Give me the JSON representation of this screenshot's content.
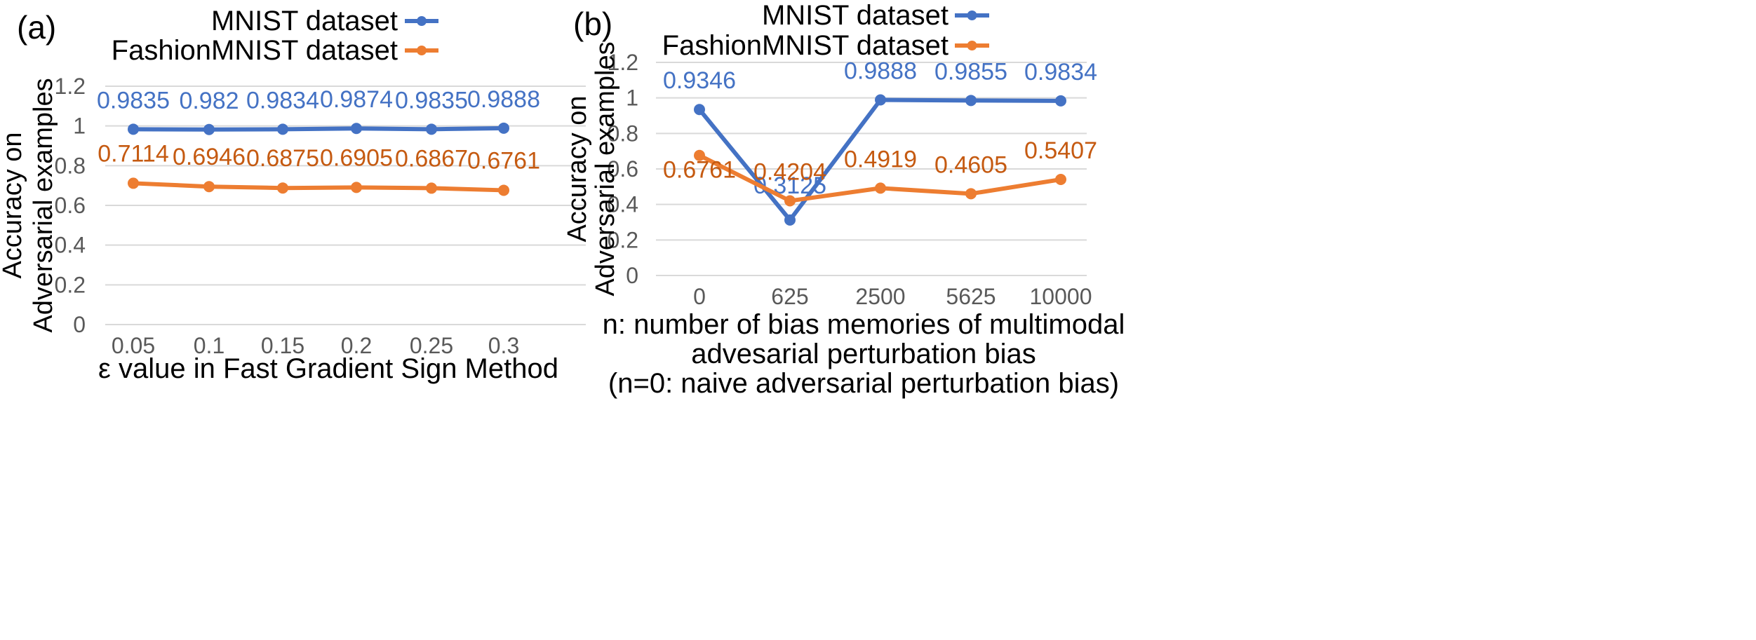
{
  "colors": {
    "mnist": "#4472C4",
    "fashion": "#ED7D31",
    "fashion_label": "#C55A11",
    "grid": "#D9D9D9",
    "axis_text": "#595959",
    "text": "#000000"
  },
  "chart_data": [
    {
      "type": "line",
      "panel_label": "(a)",
      "categories": [
        "0.05",
        "0.1",
        "0.15",
        "0.2",
        "0.25",
        "0.3"
      ],
      "series": [
        {
          "name": "MNIST dataset",
          "values": [
            0.9835,
            0.982,
            0.9834,
            0.9874,
            0.9835,
            0.9888
          ],
          "labels": [
            "0.9835",
            "0.982",
            "0.9834",
            "0.9874",
            "0.9835",
            "0.9888"
          ]
        },
        {
          "name": "FashionMNIST dataset",
          "values": [
            0.7114,
            0.6946,
            0.6875,
            0.6905,
            0.6867,
            0.6761
          ],
          "labels": [
            "0.7114",
            "0.6946",
            "0.6875",
            "0.6905",
            "0.6867",
            "0.6761"
          ]
        }
      ],
      "ylabel": [
        "Accuracy on",
        "Adversarial examples"
      ],
      "xlabel": [
        "ε value in Fast Gradient Sign Method"
      ],
      "ylim": [
        0,
        1.2
      ],
      "yticks": [
        "0",
        "0.2",
        "0.4",
        "0.6",
        "0.8",
        "1",
        "1.2"
      ],
      "grid": true,
      "legend": "top-center"
    },
    {
      "type": "line",
      "panel_label": "(b)",
      "categories": [
        "0",
        "625",
        "2500",
        "5625",
        "10000"
      ],
      "series": [
        {
          "name": "MNIST dataset",
          "values": [
            0.9346,
            0.3125,
            0.9888,
            0.9855,
            0.9834
          ],
          "labels": [
            "0.9346",
            "0.3125",
            "0.9888",
            "0.9855",
            "0.9834"
          ]
        },
        {
          "name": "FashionMNIST dataset",
          "values": [
            0.6761,
            0.4204,
            0.4919,
            0.4605,
            0.5407
          ],
          "labels": [
            "0.6761",
            "0.4204",
            "0.4919",
            "0.4605",
            "0.5407"
          ]
        }
      ],
      "ylabel": [
        "Accuracy on",
        "Adversarial examples"
      ],
      "xlabel": [
        "n: number of bias memories of multimodal",
        "advesarial perturbation bias",
        "(n=0: naive adversarial perturbation bias)"
      ],
      "ylim": [
        0,
        1.2
      ],
      "yticks": [
        "0",
        "0.2",
        "0.4",
        "0.6",
        "0.8",
        "1",
        "1.2"
      ],
      "grid": true,
      "legend": "top-center"
    }
  ]
}
